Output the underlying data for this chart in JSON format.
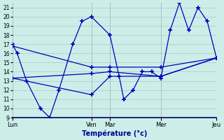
{
  "xlabel": "Température (°c)",
  "background_color": "#cceee8",
  "grid_color": "#aacccc",
  "line_color": "#0000bb",
  "day_labels": [
    "Lun",
    "Ven",
    "Mar",
    "Mer",
    "Jeu"
  ],
  "day_tick_positions": [
    0,
    8.5,
    10.5,
    16,
    22
  ],
  "ylim": [
    9,
    21.5
  ],
  "ytick_min": 9,
  "ytick_max": 21,
  "xlim": [
    0,
    22
  ],
  "vlines": [
    0,
    8.5,
    10.5,
    16,
    22
  ],
  "series0_x": [
    0,
    0.5,
    1.5,
    3,
    4,
    5,
    6.5,
    7.5,
    8.5,
    10.5,
    11.5,
    12,
    13,
    14,
    15,
    16,
    17,
    18,
    19,
    20,
    21,
    22
  ],
  "series0_y": [
    17,
    16,
    13,
    10,
    9,
    12,
    17,
    19.5,
    20,
    18,
    13.5,
    11,
    12,
    14,
    14,
    13.3,
    18.5,
    21.5,
    18.5,
    21,
    19.5,
    15.5
  ],
  "flat_lines": [
    {
      "x": [
        0,
        8.5,
        10.5,
        16,
        22
      ],
      "y": [
        13.3,
        13.8,
        14.0,
        13.5,
        15.5
      ]
    },
    {
      "x": [
        0,
        8.5,
        10.5,
        16,
        22
      ],
      "y": [
        16.8,
        14.5,
        14.5,
        14.5,
        15.5
      ]
    },
    {
      "x": [
        0,
        8.5,
        10.5,
        16,
        22
      ],
      "y": [
        13.3,
        11.5,
        13.5,
        13.5,
        15.5
      ]
    }
  ]
}
